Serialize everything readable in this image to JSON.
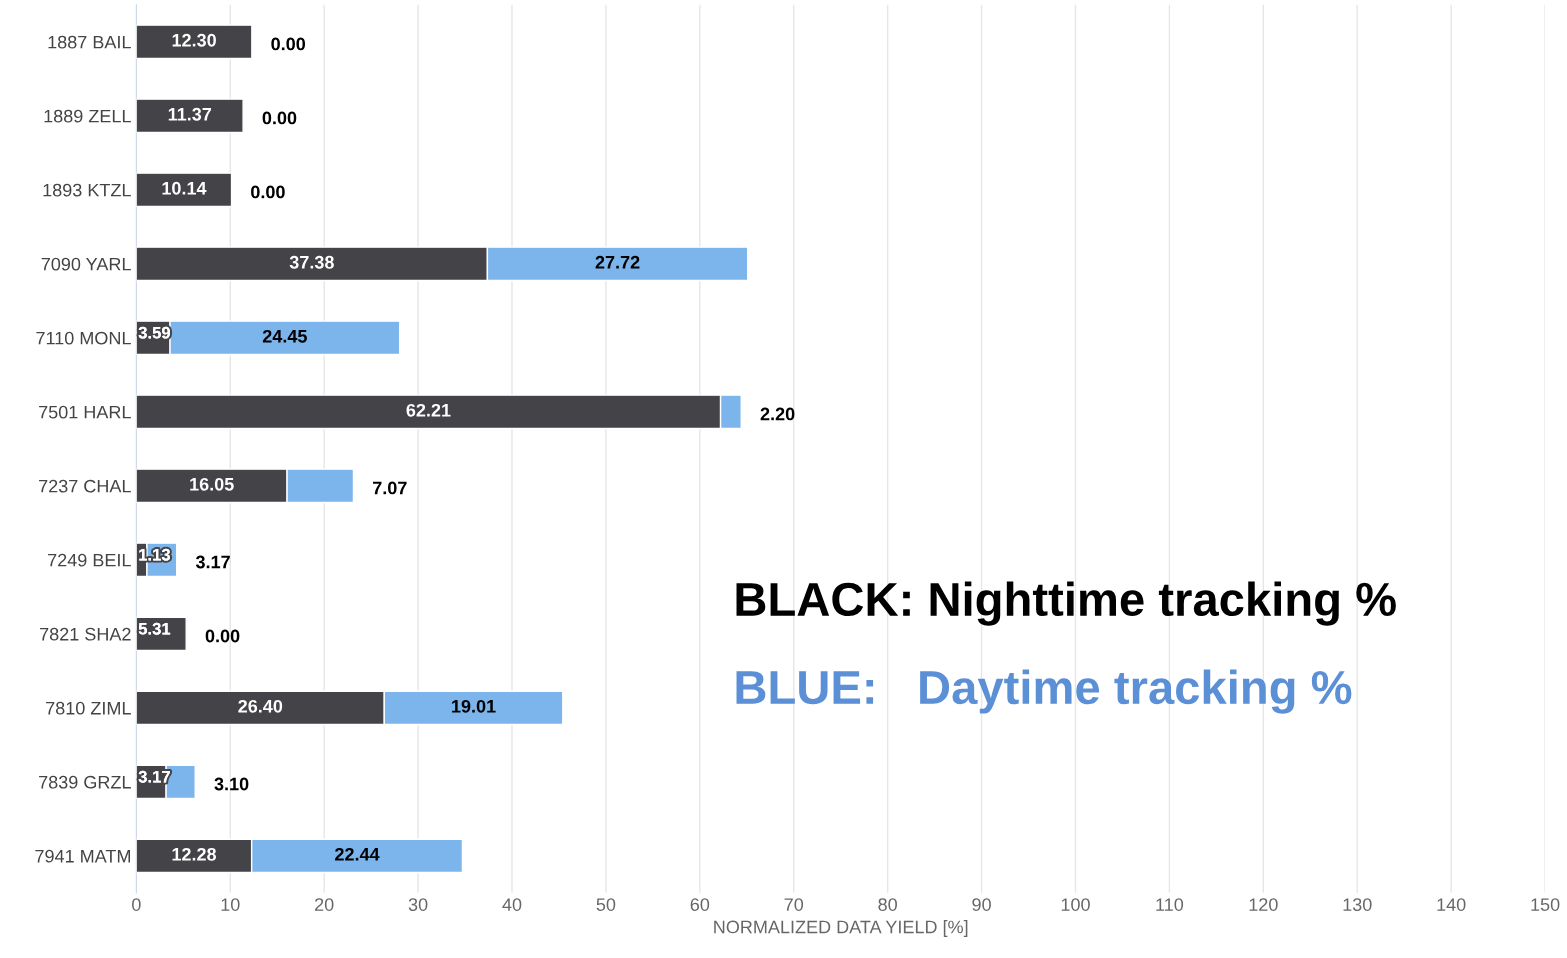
{
  "chart_data": {
    "type": "bar",
    "orientation": "horizontal",
    "stacked": true,
    "legend": false,
    "grid": "x",
    "categories": [
      "1887 BAIL",
      "1889 ZELL",
      "1893 KTZL",
      "7090 YARL",
      "7110 MONL",
      "7501 HARL",
      "7237 CHAL",
      "7249 BEIL",
      "7821 SHA2",
      "7810 ZIML",
      "7839 GRZL",
      "7941 MATM"
    ],
    "series": [
      {
        "color": "#434348",
        "values": [
          12.3,
          11.37,
          10.14,
          37.38,
          3.59,
          62.21,
          16.05,
          1.13,
          5.31,
          26.4,
          3.17,
          12.28
        ],
        "value_labels": [
          "12.30",
          "11.37",
          "10.14",
          "37.38",
          "3.59",
          "62.21",
          "16.05",
          "1.13",
          "5.31",
          "26.40",
          "3.17",
          "12.28"
        ]
      },
      {
        "color": "#7cb5ec",
        "values": [
          0.0,
          0.0,
          0.0,
          27.72,
          24.45,
          2.2,
          7.07,
          3.17,
          0.0,
          19.01,
          3.1,
          22.44
        ],
        "value_labels": [
          "0.00",
          "0.00",
          "0.00",
          "27.72",
          "24.45",
          "2.20",
          "7.07",
          "3.17",
          "0.00",
          "19.01",
          "3.10",
          "22.44"
        ]
      }
    ],
    "xlim": [
      0,
      150
    ],
    "xticks": [
      0,
      10,
      20,
      30,
      40,
      50,
      60,
      70,
      80,
      90,
      100,
      110,
      120,
      130,
      140,
      150
    ],
    "xlabel": "NORMALIZED DATA YIELD [%]",
    "annotations": [
      "BLACK: Nighttime tracking %",
      "BLUE:   Daytime tracking %"
    ]
  }
}
